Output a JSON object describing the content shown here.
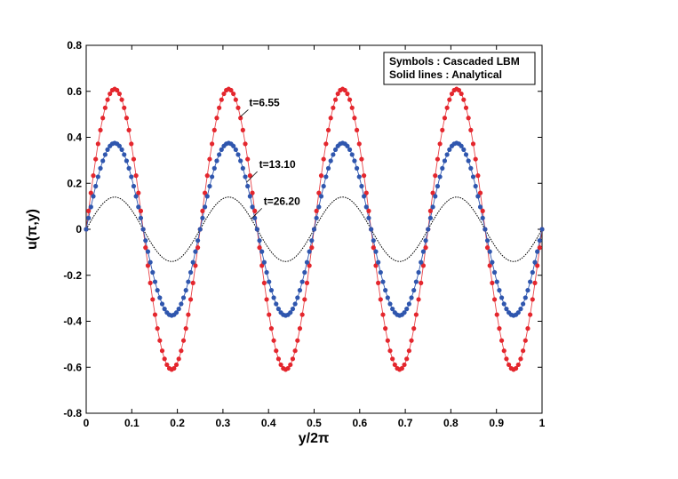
{
  "chart_data": {
    "type": "line",
    "xlabel": "y/2π",
    "ylabel": "u(π,y)",
    "xlim": [
      0,
      1
    ],
    "ylim": [
      -0.8,
      0.8
    ],
    "xticks": [
      "0",
      "0.1",
      "0.2",
      "0.3",
      "0.4",
      "0.5",
      "0.6",
      "0.7",
      "0.8",
      "0.9",
      "1"
    ],
    "yticks": [
      "-0.8",
      "-0.6",
      "-0.4",
      "-0.2",
      "0",
      "0.2",
      "0.4",
      "0.6",
      "0.8"
    ],
    "grid": false,
    "legend_lines": [
      "Symbols : Cascaded LBM",
      "Solid lines : Analytical"
    ],
    "legend_position": "top-right",
    "waves_per_unit_x": 4,
    "symbol_points_per_series": 192,
    "series": [
      {
        "annotation": "t=6.55",
        "amplitude": 0.61,
        "line_color": "#e8454a",
        "line_style": "solid",
        "marker_color": "#e4262d",
        "markers": true
      },
      {
        "annotation": "t=13.10",
        "amplitude": 0.375,
        "line_color": "#3358b0",
        "line_style": "solid",
        "marker_color": "#2f56ae",
        "markers": true
      },
      {
        "annotation": "t=26.20",
        "amplitude": 0.14,
        "line_color": "#000000",
        "line_style": "dotted",
        "marker_color": "",
        "markers": false
      }
    ]
  }
}
